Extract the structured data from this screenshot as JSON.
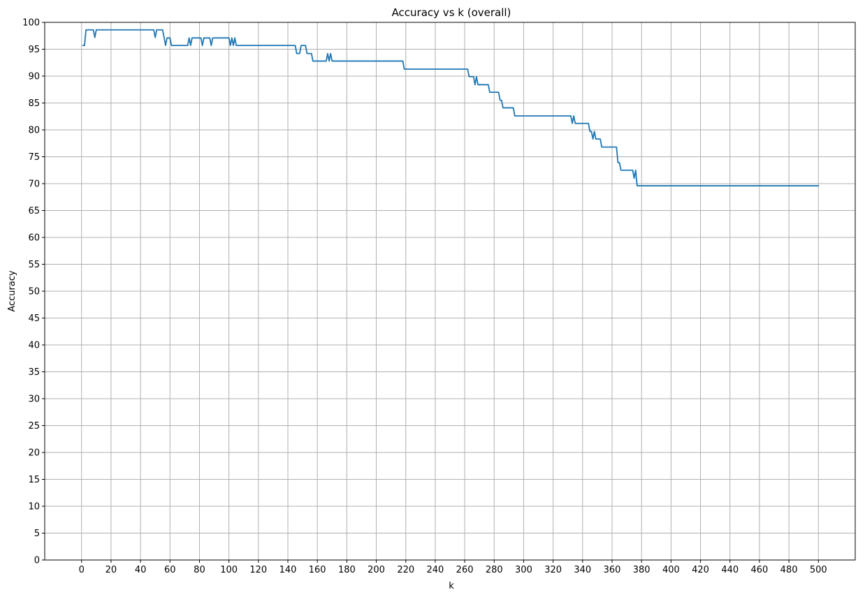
{
  "chart_data": {
    "type": "line",
    "title": "Accuracy vs k (overall)",
    "xlabel": "k",
    "ylabel": "Accuracy",
    "xlim": [
      -25,
      525
    ],
    "ylim": [
      0,
      100
    ],
    "grid": true,
    "x_ticks": [
      0,
      20,
      40,
      60,
      80,
      100,
      120,
      140,
      160,
      180,
      200,
      220,
      240,
      260,
      280,
      300,
      320,
      340,
      360,
      380,
      400,
      420,
      440,
      460,
      480,
      500
    ],
    "y_ticks": [
      0,
      5,
      10,
      15,
      20,
      25,
      30,
      35,
      40,
      45,
      50,
      55,
      60,
      65,
      70,
      75,
      80,
      85,
      90,
      95,
      100
    ],
    "line_color": "#1f77b4",
    "grid_color": "#b0b0b0",
    "series": [
      {
        "x": [
          1,
          2,
          3,
          4,
          8,
          9,
          10,
          11,
          49,
          50,
          51,
          52,
          55,
          56,
          57,
          58,
          60,
          61,
          62,
          72,
          73,
          74,
          75,
          81,
          82,
          83,
          87,
          88,
          89,
          100,
          101,
          102,
          103,
          104,
          105,
          106,
          145,
          146,
          148,
          149,
          152,
          153,
          156,
          157,
          158,
          166,
          167,
          168,
          169,
          170,
          171,
          218,
          219,
          262,
          263,
          266,
          267,
          268,
          269,
          276,
          277,
          283,
          284,
          285,
          286,
          293,
          294,
          332,
          333,
          334,
          335,
          344,
          345,
          346,
          347,
          348,
          349,
          352,
          353,
          363,
          364,
          365,
          366,
          374,
          375,
          376,
          377,
          500
        ],
        "y": [
          95.7,
          95.7,
          98.6,
          98.6,
          98.6,
          97.2,
          98.6,
          98.6,
          98.6,
          97.2,
          98.6,
          98.6,
          98.6,
          97.2,
          95.7,
          97.1,
          97.1,
          95.7,
          95.7,
          95.7,
          97.1,
          95.7,
          97.1,
          97.1,
          95.7,
          97.1,
          97.1,
          95.7,
          97.1,
          97.1,
          95.7,
          97.1,
          95.7,
          97.1,
          95.7,
          95.7,
          95.7,
          94.2,
          94.2,
          95.7,
          95.7,
          94.2,
          94.2,
          92.8,
          92.8,
          92.8,
          94.2,
          92.8,
          94.2,
          92.8,
          92.8,
          92.8,
          91.3,
          91.3,
          89.9,
          89.9,
          88.4,
          89.9,
          88.4,
          88.4,
          87.0,
          87.0,
          85.5,
          85.5,
          84.1,
          84.1,
          82.6,
          82.6,
          81.2,
          82.6,
          81.2,
          81.2,
          79.7,
          79.7,
          78.3,
          79.7,
          78.3,
          78.3,
          76.8,
          76.8,
          73.9,
          73.9,
          72.5,
          72.5,
          71.0,
          72.5,
          69.6,
          69.6
        ]
      }
    ]
  }
}
